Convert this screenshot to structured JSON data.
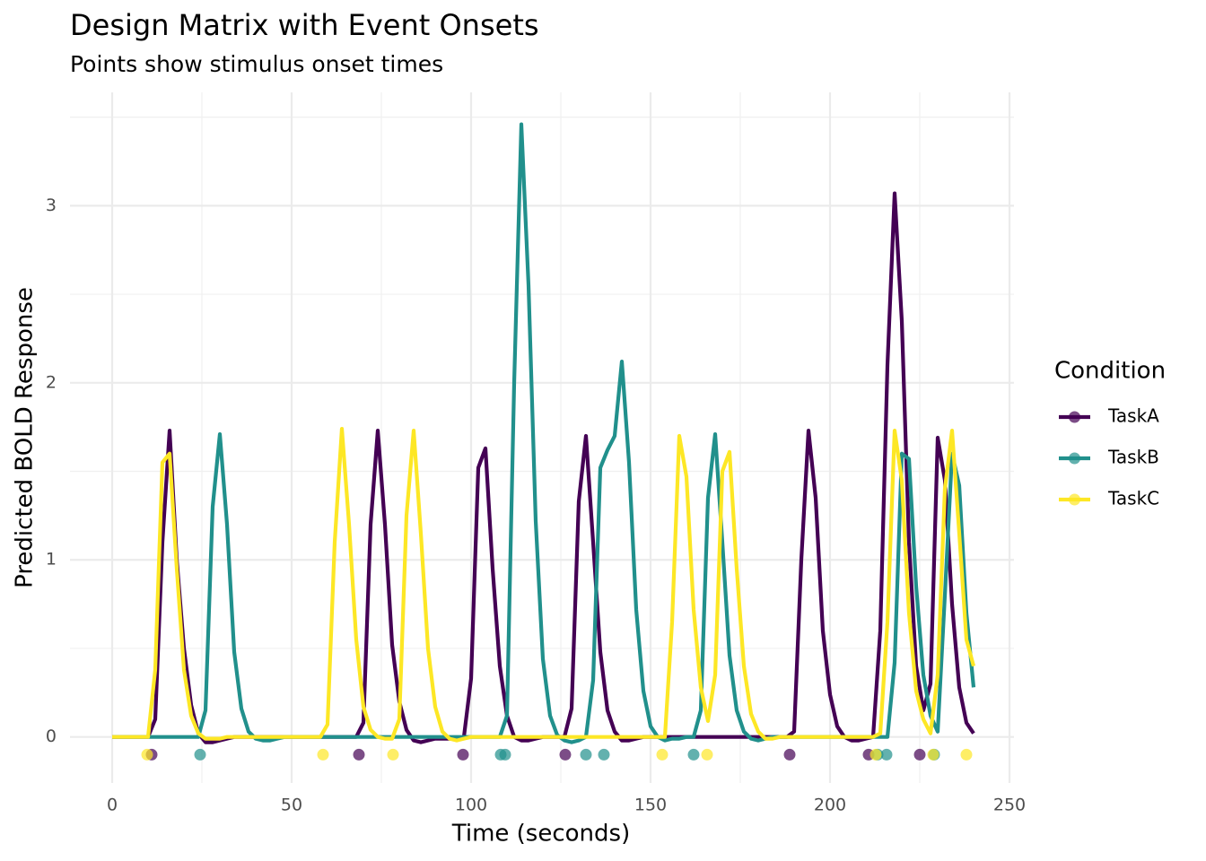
{
  "chart_data": {
    "type": "line",
    "title": "Design Matrix with Event Onsets",
    "subtitle": "Points show stimulus onset times",
    "x_label": "Time (seconds)",
    "y_label": "Predicted BOLD Response",
    "legend_title": "Condition",
    "legend_position": "right",
    "grid": true,
    "xlim": [
      -11.75,
      251.25
    ],
    "ylim": [
      -0.26,
      3.64
    ],
    "xticks": [
      0,
      50,
      100,
      150,
      200,
      250
    ],
    "yticks": [
      0,
      1,
      2,
      3
    ],
    "x_minor_ticks": [
      25,
      75,
      125,
      175,
      225
    ],
    "y_minor_ticks": [
      0.5,
      1.5,
      2.5,
      3.5
    ],
    "x": [
      0,
      2,
      4,
      6,
      8,
      10,
      12,
      14,
      16,
      18,
      20,
      22,
      24,
      26,
      28,
      30,
      32,
      34,
      36,
      38,
      40,
      42,
      44,
      46,
      48,
      50,
      52,
      54,
      56,
      58,
      60,
      62,
      64,
      66,
      68,
      70,
      72,
      74,
      76,
      78,
      80,
      82,
      84,
      86,
      88,
      90,
      92,
      94,
      96,
      98,
      100,
      102,
      104,
      106,
      108,
      110,
      112,
      114,
      116,
      118,
      120,
      122,
      124,
      126,
      128,
      130,
      132,
      134,
      136,
      138,
      140,
      142,
      144,
      146,
      148,
      150,
      152,
      154,
      156,
      158,
      160,
      162,
      164,
      166,
      168,
      170,
      172,
      174,
      176,
      178,
      180,
      182,
      184,
      186,
      188,
      190,
      192,
      194,
      196,
      198,
      200,
      202,
      204,
      206,
      208,
      210,
      212,
      214,
      216,
      218,
      220,
      222,
      224,
      226,
      228,
      230,
      232,
      234,
      236,
      238,
      240
    ],
    "series": [
      {
        "name": "TaskA",
        "color": "#440154",
        "values": [
          0,
          0,
          0,
          0,
          0,
          0,
          0.1,
          1.1,
          1.73,
          1.0,
          0.5,
          0.18,
          0.02,
          -0.03,
          -0.03,
          -0.02,
          -0.01,
          0,
          0,
          0,
          0,
          0,
          0,
          0,
          0,
          0,
          0,
          0,
          0,
          0,
          0,
          0,
          0,
          0,
          0,
          0.08,
          1.2,
          1.73,
          1.2,
          0.52,
          0.2,
          0.04,
          -0.02,
          -0.03,
          -0.02,
          -0.01,
          -0.01,
          -0.01,
          -0.01,
          0,
          0.33,
          1.52,
          1.63,
          0.95,
          0.4,
          0.12,
          0,
          -0.02,
          -0.02,
          -0.01,
          0,
          0,
          0,
          0,
          0.16,
          1.33,
          1.7,
          1.1,
          0.48,
          0.15,
          0.03,
          -0.02,
          -0.02,
          -0.01,
          0,
          0,
          0,
          0,
          0,
          0,
          0,
          0,
          0,
          0,
          0,
          0,
          0,
          0,
          0,
          0,
          0,
          0,
          0,
          0,
          0,
          0.03,
          1.0,
          1.73,
          1.35,
          0.6,
          0.24,
          0.06,
          0,
          -0.02,
          -0.02,
          -0.01,
          0,
          0.6,
          2.1,
          3.07,
          2.35,
          1.1,
          0.4,
          0.15,
          0.3,
          1.69,
          1.45,
          0.75,
          0.28,
          0.08,
          0.02
        ]
      },
      {
        "name": "TaskB",
        "color": "#21908C",
        "values": [
          0,
          0,
          0,
          0,
          0,
          0,
          0,
          0,
          0,
          0,
          0,
          0,
          0,
          0.15,
          1.3,
          1.71,
          1.2,
          0.48,
          0.16,
          0.03,
          -0.01,
          -0.02,
          -0.02,
          -0.01,
          0,
          0,
          0,
          0,
          0,
          0,
          0,
          0,
          0,
          0,
          0,
          0,
          0,
          0,
          0,
          0,
          0,
          0,
          0,
          0,
          0,
          0,
          0,
          0,
          0,
          0,
          0,
          0,
          0,
          0,
          0,
          0.12,
          2.0,
          3.46,
          2.55,
          1.22,
          0.44,
          0.12,
          0.01,
          -0.02,
          -0.03,
          -0.02,
          0,
          0.32,
          1.52,
          1.62,
          1.7,
          2.12,
          1.55,
          0.72,
          0.26,
          0.06,
          0,
          -0.02,
          -0.01,
          -0.01,
          0,
          0,
          0.15,
          1.35,
          1.71,
          1.1,
          0.46,
          0.15,
          0.03,
          -0.01,
          -0.02,
          -0.01,
          0,
          0,
          0,
          0,
          0,
          0,
          0,
          0,
          0,
          0,
          0,
          0,
          0,
          0,
          0,
          0,
          0,
          0.42,
          1.6,
          1.57,
          0.85,
          0.35,
          0.12,
          0.03,
          0.8,
          1.6,
          1.42,
          0.7,
          0.28
        ]
      },
      {
        "name": "TaskC",
        "color": "#FDE725",
        "values": [
          0,
          0,
          0,
          0,
          0,
          0,
          0.38,
          1.55,
          1.6,
          0.95,
          0.38,
          0.12,
          0.02,
          -0.01,
          -0.01,
          -0.01,
          0,
          0,
          0,
          0,
          0,
          0,
          0,
          0,
          0,
          0,
          0,
          0,
          0,
          0,
          0.07,
          1.1,
          1.74,
          1.2,
          0.55,
          0.17,
          0.04,
          0,
          -0.01,
          -0.01,
          0.1,
          1.25,
          1.73,
          1.15,
          0.5,
          0.17,
          0.03,
          -0.01,
          -0.02,
          -0.01,
          0,
          0,
          0,
          0,
          0,
          0,
          0,
          0,
          0,
          0,
          0,
          0,
          0,
          0,
          0,
          0,
          0,
          0,
          0,
          0,
          0,
          0,
          0,
          0,
          0,
          0,
          0,
          0,
          0.65,
          1.7,
          1.47,
          0.72,
          0.28,
          0.09,
          0.35,
          1.5,
          1.61,
          0.95,
          0.4,
          0.13,
          0.03,
          -0.01,
          -0.01,
          0,
          0,
          0,
          0,
          0,
          0,
          0,
          0,
          0,
          0,
          0,
          0,
          0,
          0,
          0.02,
          0.65,
          1.73,
          1.45,
          0.7,
          0.26,
          0.1,
          0.02,
          0.35,
          1.4,
          1.73,
          1.15,
          0.55,
          0.4
        ]
      }
    ],
    "onsets": [
      {
        "name": "TaskA",
        "color": "#440154",
        "x": [
          11,
          68.75,
          97.75,
          126.25,
          188.75,
          210.75,
          225
        ],
        "y": [
          -0.1,
          -0.1,
          -0.1,
          -0.1,
          -0.1,
          -0.1,
          -0.1
        ]
      },
      {
        "name": "TaskB",
        "color": "#21908C",
        "x": [
          24.5,
          108.25,
          109.5,
          132,
          137,
          162,
          213.25,
          215.75,
          229
        ],
        "y": [
          -0.1,
          -0.1,
          -0.1,
          -0.1,
          -0.1,
          -0.1,
          -0.1,
          -0.1,
          -0.1
        ]
      },
      {
        "name": "TaskC",
        "color": "#FDE725",
        "x": [
          9.75,
          58.75,
          78.25,
          153.25,
          165.75,
          212.75,
          228.75,
          238
        ],
        "y": [
          -0.1,
          -0.1,
          -0.1,
          -0.1,
          -0.1,
          -0.1,
          -0.1,
          -0.1
        ]
      }
    ]
  }
}
